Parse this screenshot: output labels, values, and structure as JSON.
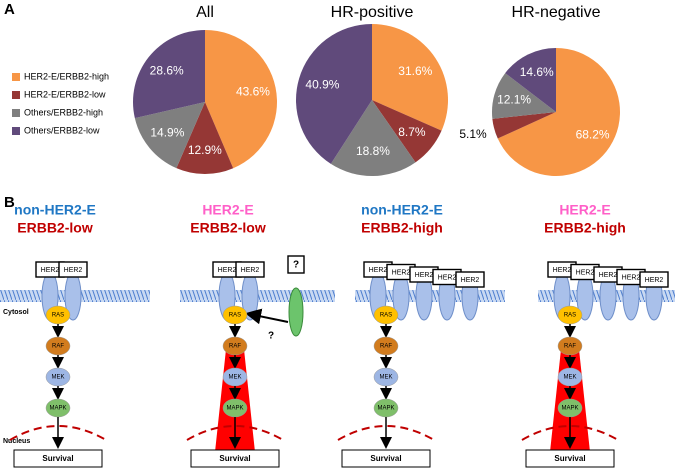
{
  "chart_data": [
    {
      "type": "pie",
      "title": "All",
      "categories": [
        "HER2-E/ERBB2-high",
        "HER2-E/ERBB2-low",
        "Others/ERBB2-high",
        "Others/ERBB2-low"
      ],
      "values": [
        43.6,
        12.9,
        14.9,
        28.6
      ],
      "value_labels": [
        "43.6%",
        "12.9%",
        "14.9%",
        "28.6%"
      ],
      "colors": [
        "#f79646",
        "#953735",
        "#7f7f7f",
        "#604a7b"
      ]
    },
    {
      "type": "pie",
      "title": "HR-positive",
      "values": [
        31.6,
        8.7,
        18.8,
        40.9
      ],
      "value_labels": [
        "31.6%",
        "8.7%",
        "18.8%",
        "40.9%"
      ],
      "colors": [
        "#f79646",
        "#953735",
        "#7f7f7f",
        "#604a7b"
      ]
    },
    {
      "type": "pie",
      "title": "HR-negative",
      "values": [
        68.2,
        5.1,
        12.1,
        14.6
      ],
      "value_labels": [
        "68.2%",
        "5.1%",
        "12.1%",
        "14.6%"
      ],
      "colors": [
        "#f79646",
        "#953735",
        "#7f7f7f",
        "#604a7b"
      ]
    }
  ],
  "panel_a": {
    "label": "A"
  },
  "panel_b": {
    "label": "B",
    "cytosol": "Cytosol",
    "nucleus": "Nucleus",
    "unknown": "?",
    "columns": [
      {
        "subtype": "non-HER2-E",
        "erbb2": "ERBB2-low",
        "receptors": [
          "HER2",
          "HER2"
        ],
        "nodes": [
          "RAS",
          "RAF",
          "MEK",
          "MAPK"
        ],
        "outcome": "Survival"
      },
      {
        "subtype": "HER2-E",
        "erbb2": "ERBB2-low",
        "receptors": [
          "HER2",
          "HER2"
        ],
        "nodes": [
          "RAS",
          "RAF",
          "MEK",
          "MAPK"
        ],
        "outcome": "Survival"
      },
      {
        "subtype": "non-HER2-E",
        "erbb2": "ERBB2-high",
        "receptors": [
          "HER2",
          "HER2",
          "HER2",
          "HER2",
          "HER2"
        ],
        "nodes": [
          "RAS",
          "RAF",
          "MEK",
          "MAPK"
        ],
        "outcome": "Survival"
      },
      {
        "subtype": "HER2-E",
        "erbb2": "ERBB2-high",
        "receptors": [
          "HER2",
          "HER2",
          "HER2",
          "HER2",
          "HER2"
        ],
        "nodes": [
          "RAS",
          "RAF",
          "MEK",
          "MAPK"
        ],
        "outcome": "Survival"
      }
    ]
  }
}
